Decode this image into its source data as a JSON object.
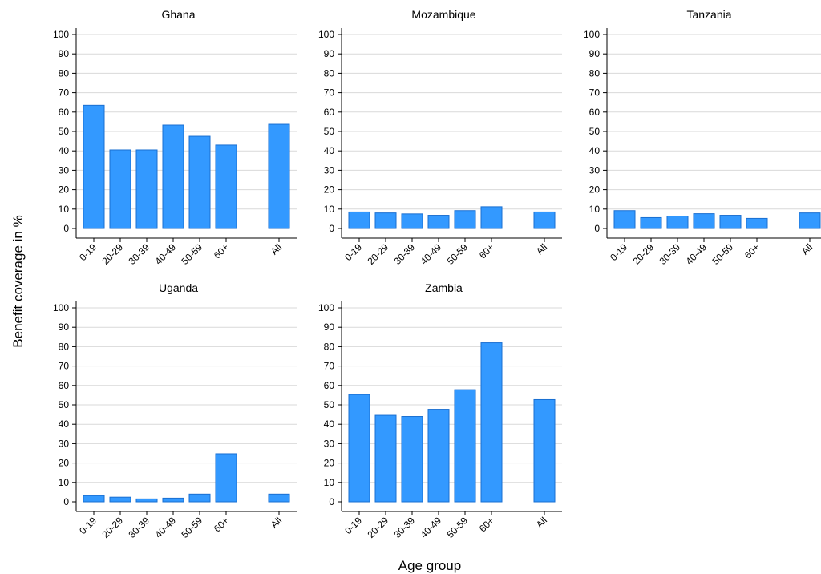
{
  "chart_data": {
    "type": "bar",
    "ylabel": "Benefit coverage in %",
    "xlabel": "Age group",
    "ylim": [
      0,
      100
    ],
    "yticks": [
      "0",
      "10",
      "20",
      "30",
      "40",
      "50",
      "60",
      "70",
      "80",
      "90",
      "100"
    ],
    "categories": [
      "0-19",
      "20-29",
      "30-39",
      "40-49",
      "50-59",
      "60+",
      "All"
    ],
    "grid": true,
    "bar_color": "#3399ff",
    "bar_edge_color": "#1a6fd1",
    "grid_color": "#d9d9d9",
    "panels": [
      {
        "title": "Ghana",
        "values": [
          63.5,
          40.5,
          40.5,
          53.3,
          47.5,
          43.0,
          53.7
        ]
      },
      {
        "title": "Mozambique",
        "values": [
          8.5,
          8.0,
          7.5,
          6.8,
          9.2,
          11.2,
          8.5
        ]
      },
      {
        "title": "Tanzania",
        "values": [
          9.2,
          5.6,
          6.4,
          7.6,
          6.8,
          5.2,
          8.0
        ]
      },
      {
        "title": "Uganda",
        "values": [
          3.2,
          2.4,
          1.5,
          1.9,
          4.0,
          24.8,
          4.0
        ]
      },
      {
        "title": "Zambia",
        "values": [
          55.3,
          44.6,
          44.0,
          47.7,
          57.8,
          82.0,
          52.7
        ]
      }
    ]
  }
}
